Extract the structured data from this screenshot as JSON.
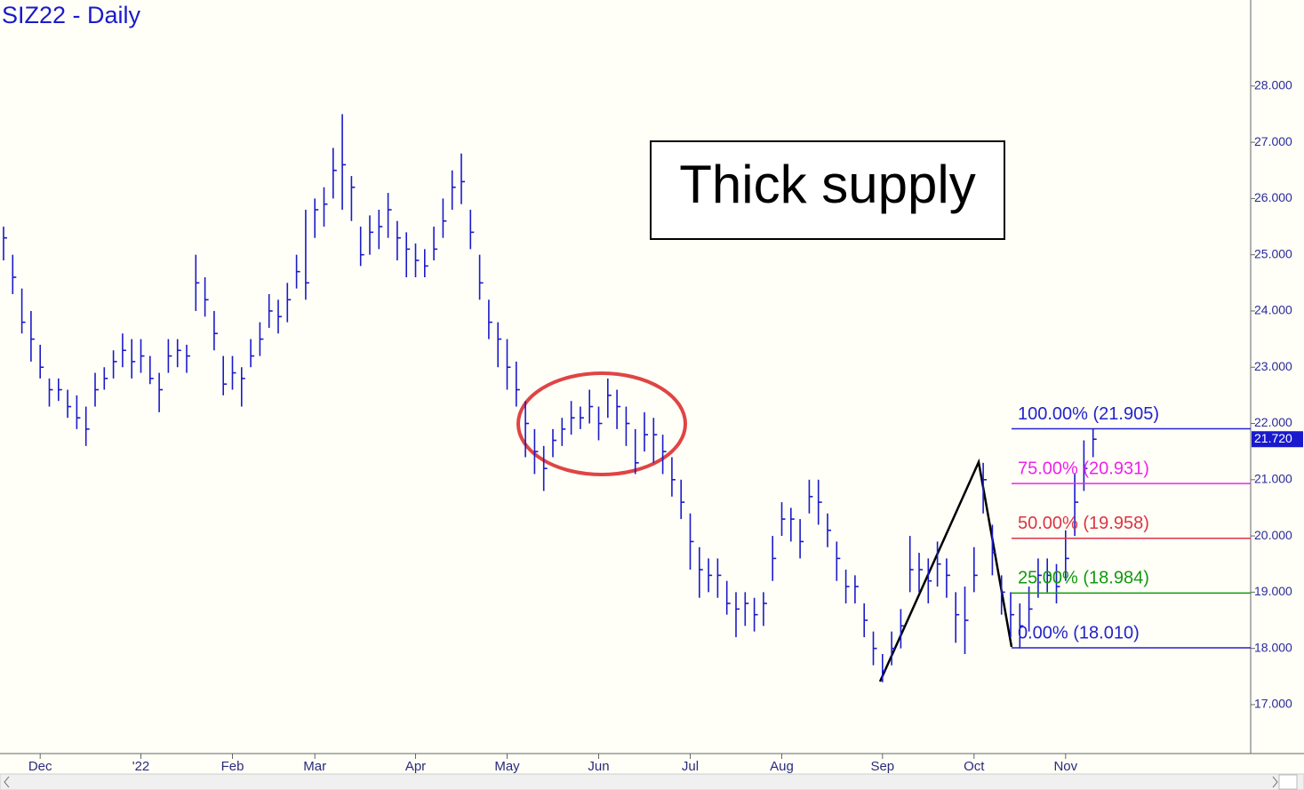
{
  "chart_data": {
    "type": "ohlc",
    "title": "SIZ22 - Daily",
    "annotation": "Thick supply",
    "bar_color": "#1a1acc",
    "categories": [
      null,
      null,
      null,
      null,
      "Dec",
      null,
      null,
      null,
      null,
      null,
      null,
      null,
      null,
      null,
      null,
      "'22",
      null,
      null,
      null,
      null,
      null,
      null,
      null,
      null,
      null,
      "Feb",
      null,
      null,
      null,
      null,
      null,
      null,
      null,
      null,
      "Mar",
      null,
      null,
      null,
      null,
      null,
      null,
      null,
      null,
      null,
      null,
      "Apr",
      null,
      null,
      null,
      null,
      null,
      null,
      null,
      null,
      null,
      "May",
      null,
      null,
      null,
      null,
      null,
      null,
      null,
      null,
      null,
      "Jun",
      null,
      null,
      null,
      null,
      null,
      null,
      null,
      null,
      null,
      "Jul",
      null,
      null,
      null,
      null,
      null,
      null,
      null,
      null,
      null,
      "Aug",
      null,
      null,
      null,
      null,
      null,
      null,
      null,
      null,
      null,
      null,
      "Sep",
      null,
      null,
      null,
      null,
      null,
      null,
      null,
      null,
      null,
      "Oct",
      null,
      null,
      null,
      null,
      null,
      null,
      null,
      null,
      null,
      "Nov",
      null,
      null,
      null
    ],
    "high": [
      25.5,
      25.0,
      24.4,
      24.0,
      23.4,
      22.8,
      22.8,
      22.6,
      22.5,
      22.3,
      22.9,
      23.0,
      23.3,
      23.6,
      23.5,
      23.5,
      23.2,
      22.9,
      23.5,
      23.5,
      23.4,
      25.0,
      24.6,
      24.0,
      23.2,
      23.2,
      23.0,
      23.5,
      23.8,
      24.3,
      24.2,
      24.5,
      25.0,
      25.8,
      26.0,
      26.2,
      26.9,
      27.5,
      26.4,
      25.5,
      25.7,
      25.8,
      26.1,
      25.6,
      25.4,
      25.2,
      25.1,
      25.5,
      26.0,
      26.5,
      26.8,
      25.8,
      25.0,
      24.2,
      23.8,
      23.5,
      23.1,
      22.4,
      21.9,
      21.6,
      21.9,
      22.1,
      22.4,
      22.3,
      22.6,
      22.3,
      22.8,
      22.6,
      22.3,
      21.9,
      22.2,
      22.1,
      21.8,
      21.4,
      21.0,
      20.4,
      19.8,
      19.6,
      19.6,
      19.2,
      19.0,
      19.0,
      18.9,
      19.0,
      20.0,
      20.6,
      20.5,
      20.3,
      21.0,
      21.0,
      20.4,
      19.9,
      19.4,
      19.3,
      18.8,
      18.3,
      17.9,
      18.3,
      18.7,
      20.0,
      19.7,
      19.6,
      19.9,
      19.6,
      19.0,
      19.1,
      19.8,
      21.3,
      20.2,
      19.3,
      19.0,
      18.8,
      19.1,
      19.6,
      19.6,
      19.5,
      20.1,
      21.1,
      21.7,
      21.905
    ],
    "low": [
      24.9,
      24.3,
      23.6,
      23.1,
      22.8,
      22.3,
      22.4,
      22.1,
      21.9,
      21.6,
      22.3,
      22.6,
      22.8,
      23.0,
      22.8,
      22.9,
      22.7,
      22.2,
      22.9,
      23.0,
      22.9,
      24.0,
      23.9,
      23.3,
      22.5,
      22.6,
      22.3,
      23.0,
      23.2,
      23.7,
      23.6,
      23.8,
      24.4,
      24.2,
      25.3,
      25.5,
      26.0,
      25.8,
      25.6,
      24.8,
      25.0,
      25.1,
      25.3,
      24.9,
      24.6,
      24.6,
      24.6,
      24.9,
      25.3,
      25.8,
      25.9,
      25.1,
      24.2,
      23.5,
      23.0,
      22.6,
      22.3,
      21.4,
      21.1,
      20.8,
      21.4,
      21.6,
      21.8,
      21.9,
      22.0,
      21.7,
      22.1,
      21.9,
      21.6,
      21.1,
      21.5,
      21.3,
      21.1,
      20.7,
      20.3,
      19.4,
      18.9,
      19.0,
      18.9,
      18.6,
      18.2,
      18.4,
      18.3,
      18.4,
      19.2,
      20.0,
      19.9,
      19.6,
      20.4,
      20.2,
      19.8,
      19.2,
      18.8,
      18.8,
      18.2,
      17.7,
      17.4,
      17.7,
      18.0,
      19.0,
      19.0,
      18.8,
      19.1,
      18.9,
      18.1,
      17.9,
      19.0,
      20.4,
      19.3,
      18.6,
      18.2,
      18.0,
      18.3,
      18.9,
      19.0,
      18.8,
      19.2,
      20.0,
      20.8,
      21.4
    ],
    "close": [
      25.3,
      24.6,
      23.8,
      23.5,
      23.0,
      22.6,
      22.6,
      22.3,
      22.1,
      21.9,
      22.6,
      22.8,
      23.1,
      23.3,
      23.1,
      23.2,
      22.8,
      22.6,
      23.2,
      23.3,
      23.2,
      24.5,
      24.2,
      23.6,
      22.7,
      22.9,
      22.8,
      23.2,
      23.5,
      24.0,
      23.9,
      24.2,
      24.7,
      24.5,
      25.8,
      25.9,
      26.5,
      26.6,
      26.2,
      25.0,
      25.4,
      25.5,
      25.8,
      25.3,
      25.1,
      24.9,
      24.8,
      25.1,
      25.6,
      26.2,
      26.3,
      25.4,
      24.5,
      23.8,
      23.5,
      23.0,
      22.6,
      22.0,
      21.5,
      21.2,
      21.7,
      21.9,
      22.1,
      22.1,
      22.3,
      22.0,
      22.5,
      22.3,
      22.0,
      21.3,
      21.8,
      21.8,
      21.5,
      21.0,
      20.6,
      19.9,
      19.4,
      19.3,
      19.3,
      18.8,
      18.7,
      18.8,
      18.6,
      18.8,
      19.6,
      20.3,
      20.3,
      19.9,
      20.7,
      20.6,
      20.1,
      19.6,
      19.1,
      19.1,
      18.5,
      18.0,
      17.6,
      18.0,
      18.4,
      19.4,
      19.4,
      19.2,
      19.5,
      19.3,
      18.6,
      18.5,
      19.3,
      21.0,
      19.7,
      19.0,
      18.6,
      18.4,
      18.7,
      19.3,
      19.3,
      19.1,
      19.6,
      20.6,
      21.2,
      21.72
    ],
    "last_price": {
      "value": 21.72,
      "label": "21.720"
    },
    "levels": [
      {
        "text": "100.00% (21.905)",
        "value": 21.905,
        "color": "#2222cc"
      },
      {
        "text": "75.00% (20.931)",
        "value": 20.931,
        "color": "#ee22ee"
      },
      {
        "text": "50.00% (19.958)",
        "value": 19.958,
        "color": "#dd3344"
      },
      {
        "text": "25.00% (18.984)",
        "value": 18.984,
        "color": "#119911"
      },
      {
        "text": "0.00% (18.010)",
        "value": 18.01,
        "color": "#2222cc"
      }
    ],
    "ylim": [
      16.13,
      29.53
    ],
    "yticks": [
      {
        "value": 17,
        "label": "17.000"
      },
      {
        "value": 18,
        "label": "18.000"
      },
      {
        "value": 19,
        "label": "19.000"
      },
      {
        "value": 20,
        "label": "20.000"
      },
      {
        "value": 21,
        "label": "21.000"
      },
      {
        "value": 22,
        "label": "22.000"
      },
      {
        "value": 23,
        "label": "23.000"
      },
      {
        "value": 24,
        "label": "24.000"
      },
      {
        "value": 25,
        "label": "25.000"
      },
      {
        "value": 26,
        "label": "26.000"
      },
      {
        "value": 27,
        "label": "27.000"
      },
      {
        "value": 28,
        "label": "28.000"
      }
    ]
  }
}
